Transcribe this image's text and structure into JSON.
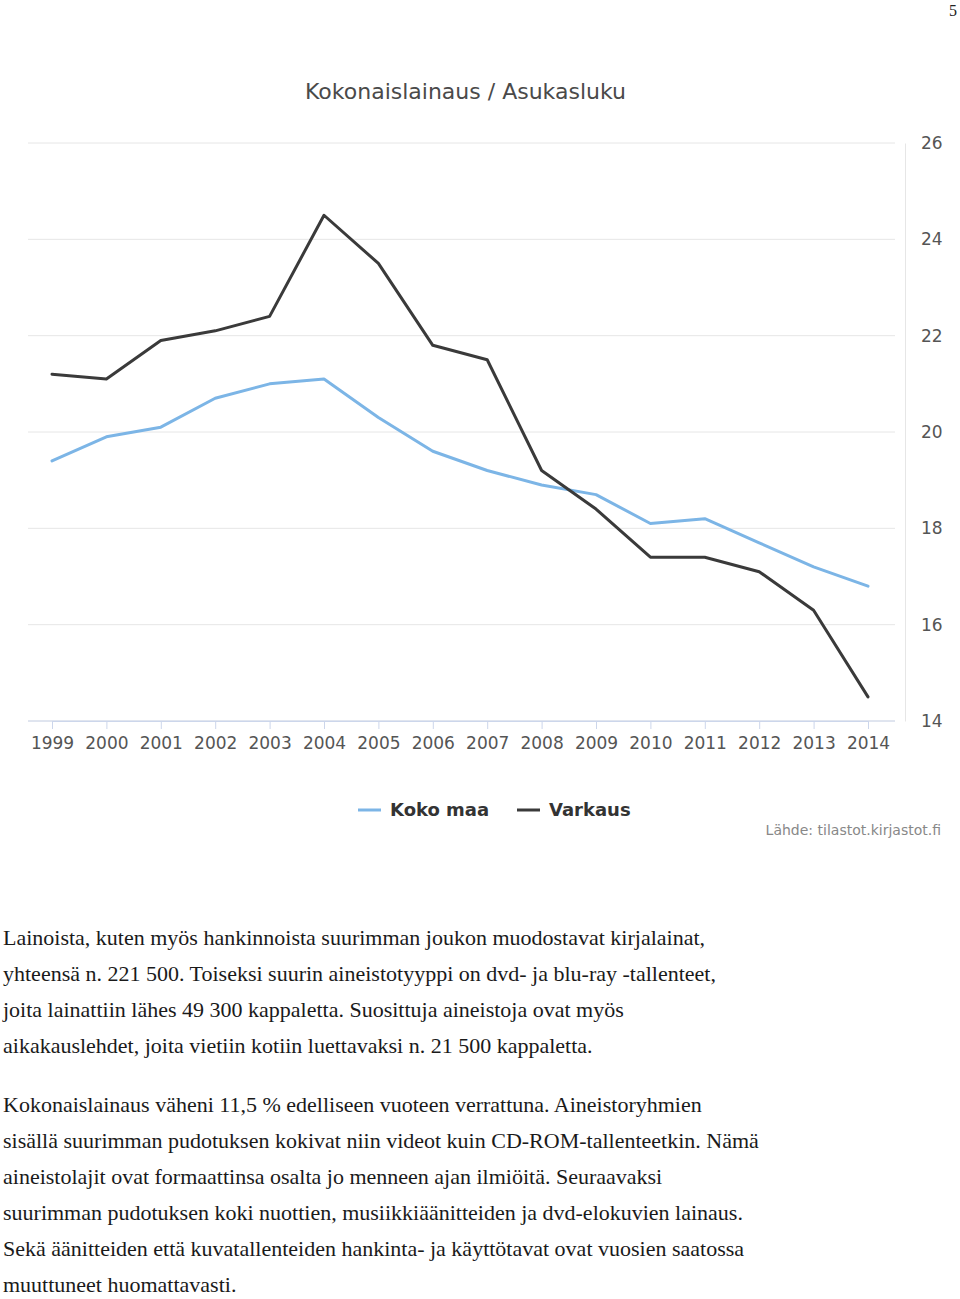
{
  "page_number": "5",
  "chart_data": {
    "type": "line",
    "title": "Kokonaislainaus / Asukasluku",
    "categories": [
      "1999",
      "2000",
      "2001",
      "2002",
      "2003",
      "2004",
      "2005",
      "2006",
      "2007",
      "2008",
      "2009",
      "2010",
      "2011",
      "2012",
      "2013",
      "2014"
    ],
    "series": [
      {
        "name": "Koko maa",
        "color": "#7cb5e6",
        "values": [
          19.4,
          19.9,
          20.1,
          20.7,
          21.0,
          21.1,
          20.3,
          19.6,
          19.2,
          18.9,
          18.7,
          18.1,
          18.2,
          17.7,
          17.2,
          16.8
        ]
      },
      {
        "name": "Varkaus",
        "color": "#3a3a3a",
        "values": [
          21.2,
          21.1,
          21.9,
          22.1,
          22.4,
          24.5,
          23.5,
          21.8,
          21.5,
          19.2,
          18.4,
          17.4,
          17.4,
          17.1,
          16.3,
          14.5
        ]
      }
    ],
    "ylim": [
      14,
      26
    ],
    "yticks": [
      14,
      16,
      18,
      20,
      22,
      24,
      26
    ],
    "grid": true,
    "legend": "bottom",
    "source": "Lähde: tilastot.kirjastot.fi"
  },
  "text": {
    "paragraphs": [
      [
        "Lainoista, kuten myös hankinnoista suurimman joukon muodostavat kirjalainat,",
        "yhteensä n. 221 500. Toiseksi suurin aineistotyyppi on dvd- ja blu-ray -tallenteet,",
        "joita lainattiin lähes 49 300 kappaletta. Suosittuja aineistoja ovat myös",
        "aikakauslehdet, joita vietiin kotiin luettavaksi n. 21 500 kappaletta."
      ],
      [
        "Kokonaislainaus väheni 11,5 % edelliseen vuoteen verrattuna. Aineistoryhmien",
        "sisällä suurimman pudotuksen kokivat niin videot kuin CD-ROM-tallenteetkin. Nämä",
        "aineistolajit ovat formaattinsa osalta jo menneen ajan ilmiöitä. Seuraavaksi",
        "suurimman pudotuksen koki nuottien, musiikkiäänitteiden ja dvd-elokuvien lainaus.",
        "Sekä äänitteiden että kuvatallenteiden hankinta- ja käyttötavat ovat vuosien saatossa",
        "muuttuneet huomattavasti."
      ]
    ]
  }
}
